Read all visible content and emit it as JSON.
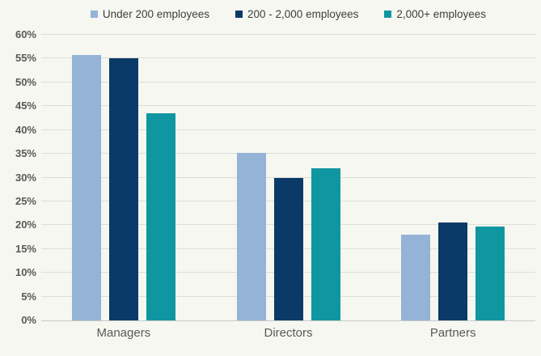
{
  "chart_data": {
    "type": "bar",
    "title": "",
    "categories": [
      "Managers",
      "Directors",
      "Partners"
    ],
    "series": [
      {
        "name": "Under 200 employees",
        "color": "#95b3d7",
        "values": [
          55.8,
          35.2,
          18.0
        ]
      },
      {
        "name": "200 - 2,000 employees",
        "color": "#0a3a67",
        "values": [
          55.0,
          30.0,
          20.5
        ]
      },
      {
        "name": "2,000+ employees",
        "color": "#0f96a1",
        "values": [
          43.5,
          32.0,
          19.7
        ]
      }
    ],
    "xlabel": "",
    "ylabel": "",
    "ylim": [
      0,
      60
    ],
    "ytick_step": 5,
    "ytick_suffix": "%",
    "grid": true,
    "legend_position": "top"
  },
  "colors": {
    "background": "#f5f7f0",
    "gridline": "#dcded8",
    "axis_line": "#c9cbc3",
    "tick_label": "#595959",
    "category_label": "#595959",
    "legend_text": "#3f3f3f"
  }
}
